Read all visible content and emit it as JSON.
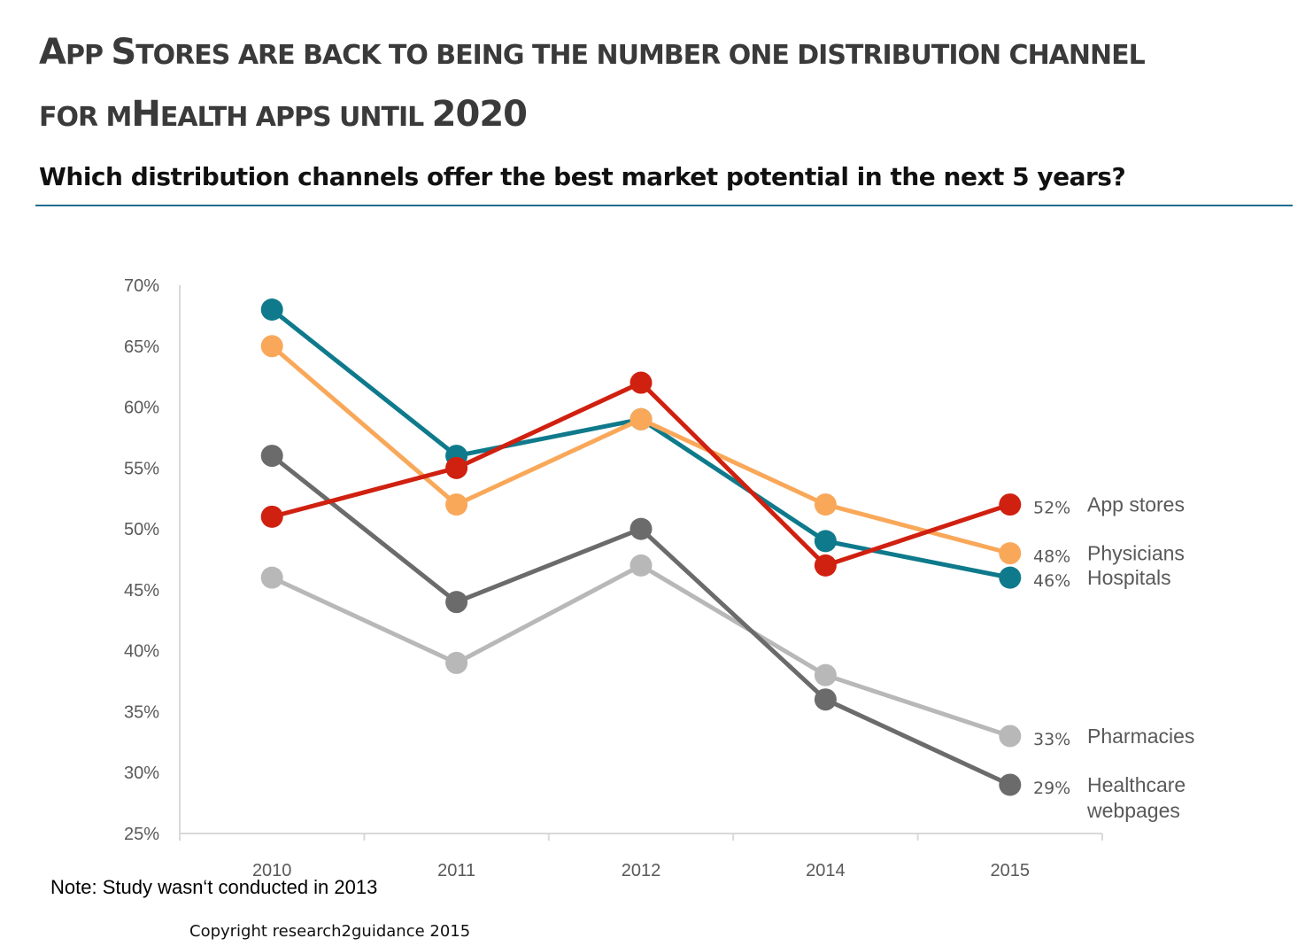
{
  "title": {
    "line1": [
      {
        "text": "A",
        "big": true
      },
      {
        "text": "PP ",
        "big": false
      },
      {
        "text": "S",
        "big": true
      },
      {
        "text": "TORES ARE BACK TO BEING THE NUMBER ONE DISTRIBUTION CHANNEL",
        "big": false
      }
    ],
    "line2": [
      {
        "text": "FOR M",
        "big": false
      },
      {
        "text": "H",
        "big": true
      },
      {
        "text": "EALTH APPS UNTIL ",
        "big": false
      },
      {
        "text": "2020",
        "big": true
      }
    ]
  },
  "subtitle": "Which distribution channels offer the best market potential in the next 5 years?",
  "note": "Note: Study wasn‘t conducted in 2013",
  "copyright": "Copyright research2guidance 2015",
  "chart_data": {
    "type": "line",
    "categories": [
      "2010",
      "2011",
      "2012",
      "2014",
      "2015"
    ],
    "ylim": [
      25,
      70
    ],
    "yticks": [
      25,
      30,
      35,
      40,
      45,
      50,
      55,
      60,
      65,
      70
    ],
    "ytick_labels": [
      "25%",
      "30%",
      "35%",
      "40%",
      "45%",
      "50%",
      "55%",
      "60%",
      "65%",
      "70%"
    ],
    "grid": false,
    "series": [
      {
        "name": "Pharmacies",
        "color": "#b8b8b8",
        "values": [
          46,
          39,
          47,
          38,
          33
        ],
        "end_label": "33%",
        "label_lines": [
          "Pharmacies"
        ]
      },
      {
        "name": "Healthcare webpages",
        "color": "#6b6b6b",
        "values": [
          56,
          44,
          50,
          36,
          29
        ],
        "end_label": "29%",
        "label_lines": [
          "Healthcare",
          "webpages"
        ]
      },
      {
        "name": "Hospitals",
        "color": "#0e7a8c",
        "values": [
          68,
          56,
          59,
          49,
          46
        ],
        "end_label": "46%",
        "label_lines": [
          "Hospitals"
        ]
      },
      {
        "name": "Physicians",
        "color": "#f9a85a",
        "values": [
          65,
          52,
          59,
          52,
          48
        ],
        "end_label": "48%",
        "label_lines": [
          "Physicians"
        ]
      },
      {
        "name": "App stores",
        "color": "#d02010",
        "values": [
          51,
          55,
          62,
          47,
          52
        ],
        "end_label": "52%",
        "label_lines": [
          "App stores"
        ]
      }
    ]
  }
}
